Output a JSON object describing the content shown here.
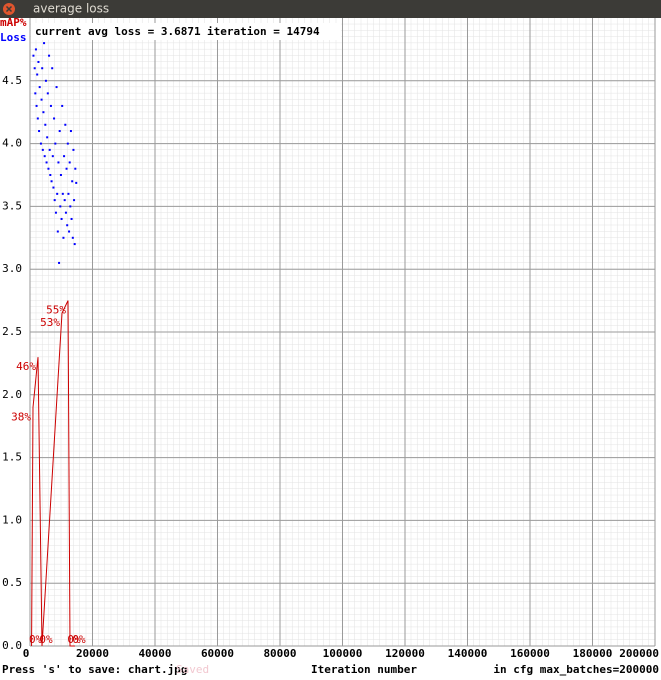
{
  "window": {
    "title": "average loss"
  },
  "chart_data": {
    "type": "scatter",
    "annotations": [
      "current avg loss = 3.6871",
      "iteration = 14794"
    ],
    "xlabel": "Iteration number",
    "footer": [
      "Press 's' to save: chart.jpg",
      "Saved",
      "in cfg max_batches=200000"
    ],
    "xlim": [
      0,
      200000
    ],
    "xticks": [
      0,
      20000,
      40000,
      60000,
      80000,
      100000,
      120000,
      140000,
      160000,
      180000,
      200000
    ],
    "ylim": [
      0,
      5
    ],
    "yticks": [
      {
        "value": 0,
        "label": "0.0"
      },
      0.5,
      {
        "value": 1,
        "label": "1.0"
      },
      1.5,
      {
        "value": 2,
        "label": "2.0"
      },
      2.5,
      {
        "value": 3,
        "label": "3.0"
      },
      3.5,
      {
        "value": 4,
        "label": "4.0"
      },
      4.5
    ],
    "y2lim": [
      0,
      100
    ],
    "grid": true,
    "series": [
      {
        "name": "Loss",
        "type": "scatter",
        "color": "#0000ff",
        "x": [
          1000,
          1100,
          1300,
          1500,
          1700,
          1900,
          2100,
          2300,
          2500,
          2700,
          2900,
          3100,
          3300,
          3500,
          3700,
          3900,
          4100,
          4300,
          4500,
          4700,
          4900,
          5100,
          5300,
          5500,
          5700,
          5900,
          6100,
          6300,
          6500,
          6700,
          6900,
          7100,
          7300,
          7500,
          7700,
          7900,
          8100,
          8300,
          8500,
          8700,
          8900,
          9100,
          9300,
          9500,
          9700,
          9900,
          10100,
          10300,
          10500,
          10700,
          10900,
          11100,
          11300,
          11500,
          11700,
          11900,
          12100,
          12300,
          12500,
          12700,
          12900,
          13100,
          13300,
          13500,
          13700,
          13900,
          14100,
          14300,
          14500,
          14794
        ],
        "values": [
          4.95,
          4.7,
          4.85,
          4.6,
          4.4,
          4.75,
          4.3,
          4.55,
          4.2,
          4.65,
          4.1,
          4.45,
          4.9,
          4.0,
          4.35,
          4.6,
          3.95,
          4.25,
          4.8,
          3.9,
          4.15,
          4.5,
          3.85,
          4.05,
          4.4,
          3.8,
          4.7,
          3.95,
          3.75,
          4.3,
          3.7,
          4.6,
          3.9,
          3.65,
          4.2,
          3.55,
          4.0,
          3.45,
          4.45,
          3.6,
          3.3,
          3.85,
          3.05,
          4.1,
          3.5,
          3.75,
          3.4,
          4.3,
          3.6,
          3.25,
          3.9,
          3.55,
          4.15,
          3.45,
          3.8,
          3.35,
          4.0,
          3.6,
          3.3,
          3.85,
          3.5,
          4.1,
          3.4,
          3.7,
          3.25,
          3.95,
          3.55,
          3.2,
          3.8,
          3.6871
        ]
      },
      {
        "name": "mAP%",
        "type": "line",
        "axis": "y2",
        "color": "#cc0000",
        "x": [
          500,
          960,
          2560,
          3840,
          10240,
          12160,
          12800,
          14400
        ],
        "values": [
          0,
          38,
          46,
          0,
          53,
          55,
          0,
          0
        ],
        "value_labels": [
          "0%",
          "38%",
          "46%",
          "0%",
          "53%",
          "55%",
          "0%",
          "0%"
        ]
      }
    ]
  }
}
